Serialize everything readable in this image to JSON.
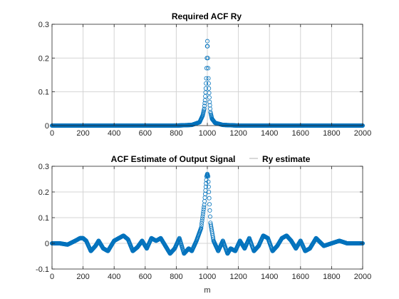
{
  "chart_data": [
    {
      "type": "scatter",
      "title": "Required ACF Ry",
      "xlabel": "",
      "ylabel": "",
      "xlim": [
        0,
        2000
      ],
      "ylim": [
        0,
        0.3
      ],
      "xticks": [
        0,
        200,
        400,
        600,
        800,
        1000,
        1200,
        1400,
        1600,
        1800,
        2000
      ],
      "yticks": [
        0,
        0.1,
        0.2,
        0.3
      ],
      "grid": true,
      "marker": "circle",
      "color": "#0072BD",
      "series": [
        {
          "x": [
            0,
            200,
            400,
            600,
            800,
            900,
            950,
            970,
            980,
            985,
            990,
            993,
            995,
            997,
            999,
            1000,
            1001,
            1003,
            1005,
            1007,
            1010,
            1015,
            1020,
            1030,
            1050,
            1100,
            1200,
            1400,
            1600,
            1800,
            2000
          ],
          "values": [
            0,
            0,
            0,
            0,
            0,
            0.002,
            0.01,
            0.03,
            0.05,
            0.075,
            0.11,
            0.14,
            0.17,
            0.2,
            0.235,
            0.25,
            0.235,
            0.2,
            0.17,
            0.14,
            0.11,
            0.07,
            0.04,
            0.02,
            0.008,
            0.002,
            0,
            0,
            0,
            0,
            0
          ]
        }
      ]
    },
    {
      "type": "scatter",
      "title": "ACF Estimate of Output Signal",
      "xlabel": "m",
      "ylabel": "",
      "xlim": [
        0,
        2000
      ],
      "ylim": [
        -0.1,
        0.3
      ],
      "xticks": [
        0,
        200,
        400,
        600,
        800,
        1000,
        1200,
        1400,
        1600,
        1800,
        2000
      ],
      "yticks": [
        -0.1,
        0,
        0.1,
        0.2,
        0.3
      ],
      "grid": true,
      "marker": "circle",
      "color": "#0072BD",
      "legend": {
        "entries": [
          "Ry estimate"
        ],
        "placement": "top-right"
      },
      "series": [
        {
          "name": "Ry estimate",
          "x": [
            0,
            50,
            100,
            150,
            180,
            200,
            220,
            250,
            280,
            300,
            330,
            360,
            400,
            430,
            460,
            490,
            520,
            550,
            580,
            610,
            640,
            670,
            700,
            730,
            760,
            790,
            820,
            850,
            880,
            900,
            930,
            960,
            980,
            990,
            995,
            1000,
            1005,
            1010,
            1020,
            1040,
            1070,
            1100,
            1130,
            1150,
            1180,
            1210,
            1240,
            1270,
            1300,
            1330,
            1360,
            1390,
            1420,
            1450,
            1480,
            1510,
            1540,
            1570,
            1600,
            1630,
            1660,
            1700,
            1750,
            1800,
            1850,
            1900,
            1950,
            2000
          ],
          "values": [
            0,
            0,
            -0.005,
            0.01,
            0.02,
            0.02,
            0.01,
            -0.03,
            -0.01,
            0.01,
            -0.02,
            -0.03,
            0.01,
            0.02,
            0.03,
            0.015,
            -0.03,
            -0.015,
            0.01,
            -0.02,
            0.02,
            0.01,
            0.02,
            -0.01,
            -0.04,
            -0.02,
            0.02,
            -0.04,
            -0.02,
            -0.03,
            0.01,
            0.06,
            0.15,
            0.22,
            0.26,
            0.27,
            0.26,
            0.2,
            0.08,
            0.01,
            -0.03,
            0.01,
            -0.04,
            -0.02,
            -0.03,
            0.01,
            -0.02,
            0.02,
            -0.03,
            -0.01,
            0.03,
            0.02,
            -0.03,
            -0.01,
            0.02,
            0.03,
            0.01,
            -0.02,
            0.01,
            -0.03,
            -0.02,
            0.02,
            -0.01,
            0.0,
            0.01,
            0.0,
            0.0,
            0.0
          ]
        }
      ]
    }
  ]
}
